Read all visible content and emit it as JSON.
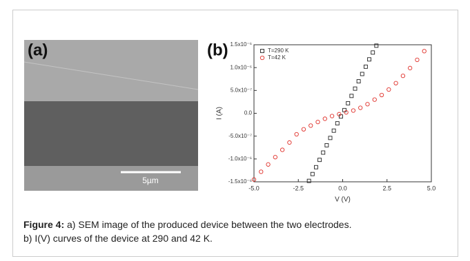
{
  "panel_a": {
    "label": "(a)",
    "scale_bar": "5µm"
  },
  "chart_data": {
    "type": "scatter",
    "label": "(b)",
    "xlabel": "V (V)",
    "ylabel": "I (A)",
    "xlim": [
      -5,
      5
    ],
    "ylim": [
      -1.5e-06,
      1.5e-06
    ],
    "xticks": [
      {
        "value": -5,
        "label": "-5.0"
      },
      {
        "value": -2.5,
        "label": "-2.5"
      },
      {
        "value": 0,
        "label": "0.0"
      },
      {
        "value": 2.5,
        "label": "2.5"
      },
      {
        "value": 5,
        "label": "5.0"
      }
    ],
    "yticks": [
      {
        "value": -1.5e-06,
        "label": "-1.5x10⁻⁶"
      },
      {
        "value": -1e-06,
        "label": "-1.0x10⁻⁶"
      },
      {
        "value": -5e-07,
        "label": "-5.0x10⁻⁷"
      },
      {
        "value": 0,
        "label": "0.0"
      },
      {
        "value": 5e-07,
        "label": "5.0x10⁻⁷"
      },
      {
        "value": 1e-06,
        "label": "1.0x10⁻⁶"
      },
      {
        "value": 1.5e-06,
        "label": "1.5x10⁻⁶"
      }
    ],
    "legend": "upper left",
    "series": [
      {
        "name": "T=290 K",
        "color": "#222222",
        "marker": "square",
        "x": [
          -1.9,
          -1.7,
          -1.5,
          -1.3,
          -1.1,
          -0.9,
          -0.7,
          -0.5,
          -0.3,
          -0.1,
          0.1,
          0.3,
          0.5,
          0.7,
          0.9,
          1.1,
          1.3,
          1.5,
          1.7,
          1.9
        ],
        "values": [
          -1.48e-06,
          -1.33e-06,
          -1.18e-06,
          -1.02e-06,
          -8.6e-07,
          -7e-07,
          -5.4e-07,
          -3.8e-07,
          -2.2e-07,
          -7e-08,
          7e-08,
          2.2e-07,
          3.8e-07,
          5.4e-07,
          7e-07,
          8.6e-07,
          1.02e-06,
          1.18e-06,
          1.33e-06,
          1.48e-06
        ]
      },
      {
        "name": "T=42 K",
        "color": "#e0302a",
        "marker": "circle",
        "x": [
          -5.0,
          -4.6,
          -4.2,
          -3.8,
          -3.4,
          -3.0,
          -2.6,
          -2.2,
          -1.8,
          -1.4,
          -1.0,
          -0.6,
          -0.2,
          0.2,
          0.6,
          1.0,
          1.4,
          1.8,
          2.2,
          2.6,
          3.0,
          3.4,
          3.8,
          4.2,
          4.6
        ],
        "values": [
          -1.45e-06,
          -1.28e-06,
          -1.12e-06,
          -9.6e-07,
          -8e-07,
          -6.4e-07,
          -4.6e-07,
          -3.5e-07,
          -2.7e-07,
          -1.9e-07,
          -1.2e-07,
          -6e-08,
          -2e-08,
          2e-08,
          6e-08,
          1.2e-07,
          2e-07,
          3e-07,
          4e-07,
          5.2e-07,
          6.6e-07,
          8.2e-07,
          9.9e-07,
          1.17e-06,
          1.36e-06
        ]
      }
    ]
  },
  "caption": {
    "label": "Figure 4:",
    "lines": [
      "a) SEM image of the produced device between the two electrodes.",
      "b) I(V) curves of the device at 290 and 42 K."
    ]
  }
}
